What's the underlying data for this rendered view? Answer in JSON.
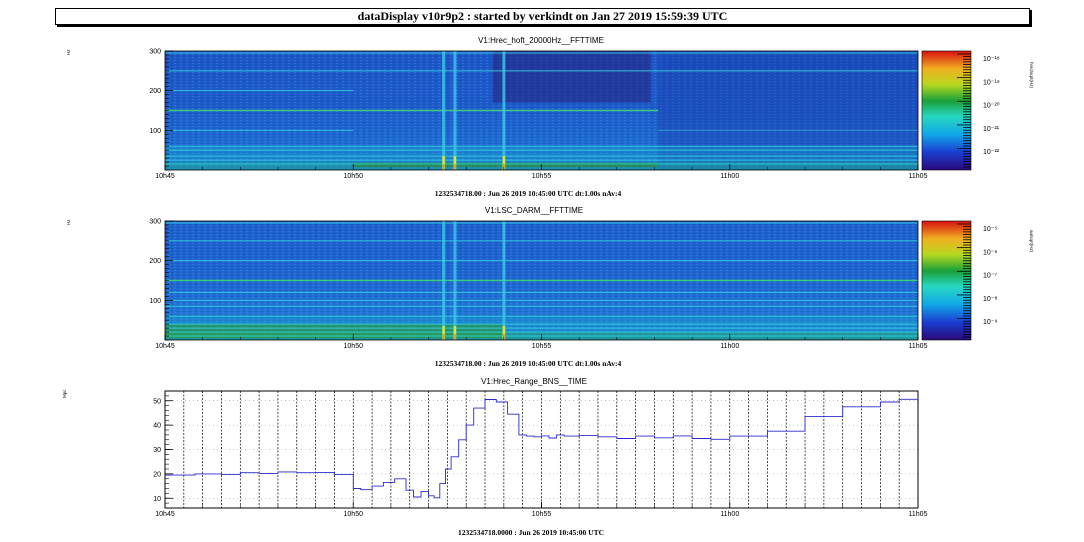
{
  "header": {
    "title": "dataDisplay v10r9p2 : started by verkindt on Jan 27 2019 15:59:39 UTC"
  },
  "x_ticks": [
    "10h45",
    "10h50",
    "10h55",
    "11h00",
    "11h05"
  ],
  "colors": {
    "background": "#ffffff",
    "frame": "#000000",
    "trace": "#2a2ad0",
    "spectrogram_base": "#1e5fd0"
  },
  "chart_data": [
    {
      "type": "heatmap",
      "title": "V1:Hrec_hoft_20000Hz__FFTTIME",
      "ylabel": "Hz",
      "zlabel": "hrec/sqrt(Hz)",
      "footer": "1232534718.00 : Jun 26 2019 10:45:00 UTC dt:1.00s nAv:4",
      "ylim": [
        0,
        300
      ],
      "y_ticks": [
        "100",
        "200",
        "300"
      ],
      "z_ticks": [
        "10⁻²²",
        "10⁻²¹",
        "10⁻²⁰",
        "10⁻¹⁹",
        "10⁻¹⁸"
      ],
      "lines_hz": [
        15,
        25,
        35,
        50,
        60,
        100,
        150,
        200,
        250,
        295
      ],
      "events_min": [
        7.4,
        7.7,
        9.0
      ],
      "quiet_after_min": 13.1
    },
    {
      "type": "heatmap",
      "title": "V1:LSC_DARM__FFTTIME",
      "ylabel": "Hz",
      "zlabel": "au/sqrt(Hz)",
      "footer": "1232534718.00 : Jun 26 2019 10:45:00 UTC dt:1.00s nAv:4",
      "ylim": [
        0,
        300
      ],
      "y_ticks": [
        "100",
        "200",
        "300"
      ],
      "z_ticks": [
        "10⁻⁹",
        "10⁻⁸",
        "10⁻⁷",
        "10⁻⁶",
        "10⁻⁵"
      ],
      "lines_hz": [
        10,
        20,
        30,
        40,
        60,
        85,
        100,
        120,
        150,
        200,
        250,
        295
      ],
      "events_min": [
        7.4,
        7.7,
        9.0
      ]
    },
    {
      "type": "line",
      "title": "V1:Hrec_Range_BNS__TIME",
      "ylabel": "Mpc",
      "footer": "1232534718.0000 : Jun 26 2019 10:45:00 UTC",
      "xlim_min": [
        0,
        20
      ],
      "ylim": [
        6,
        54
      ],
      "y_ticks": [
        "10",
        "20",
        "30",
        "40",
        "50"
      ],
      "series": [
        {
          "x_min": [
            0,
            0.8,
            1.5,
            2,
            2.5,
            3,
            3.5,
            4,
            4.5,
            5,
            5.2,
            5.5,
            5.8,
            6.1,
            6.4,
            6.6,
            6.8,
            7.0,
            7.15,
            7.3,
            7.45,
            7.6,
            7.8,
            8.0,
            8.2,
            8.5,
            8.8,
            9.1,
            9.4,
            9.6,
            9.8,
            10.0,
            10.2,
            10.4,
            10.6,
            11,
            11.5,
            12,
            12.5,
            13,
            13.5,
            14,
            14.5,
            15,
            16,
            17,
            18,
            19,
            19.5,
            20
          ],
          "y": [
            19.5,
            20,
            19.8,
            20.5,
            20.2,
            20.8,
            20.5,
            20.6,
            19.8,
            14,
            13.5,
            15,
            16.5,
            18,
            13.3,
            10.5,
            12.8,
            11,
            10.2,
            16,
            22,
            27,
            34,
            40,
            47,
            50.5,
            49.5,
            44.5,
            36,
            35.5,
            35.2,
            35.6,
            34.7,
            36,
            35.5,
            35.7,
            35.2,
            34.5,
            35.5,
            34.8,
            35.6,
            34.5,
            34.2,
            35.5,
            37.5,
            43.5,
            47.5,
            49.5,
            50.6,
            50.8
          ]
        }
      ]
    }
  ]
}
